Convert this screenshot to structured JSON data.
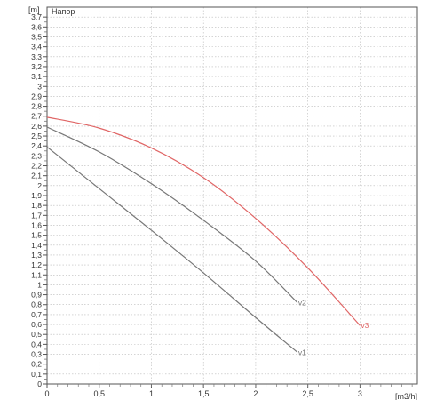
{
  "chart_data": {
    "type": "line",
    "title": "Напор",
    "y_unit": "[m]",
    "x_unit": "[m3/h]",
    "xlim": [
      0,
      3.55
    ],
    "ylim": [
      0,
      3.8
    ],
    "x_ticks": [
      0,
      0.5,
      1,
      1.5,
      2,
      2.5,
      3
    ],
    "x_tick_labels": [
      "0",
      "0,5",
      "1",
      "1,5",
      "2",
      "2,5",
      "3"
    ],
    "y_tick_step": 0.1,
    "y_tick_labels": [
      "0",
      "0,1",
      "0,2",
      "0,3",
      "0,4",
      "0,5",
      "0,6",
      "0,7",
      "0,8",
      "0,9",
      "1",
      "1,1",
      "1,2",
      "1,3",
      "1,4",
      "1,5",
      "1,6",
      "1,7",
      "1,8",
      "1,9",
      "2",
      "2,1",
      "2,2",
      "2,3",
      "2,4",
      "2,5",
      "2,6",
      "2,7",
      "2,8",
      "2,9",
      "3",
      "3,1",
      "3,2",
      "3,3",
      "3,4",
      "3,5",
      "3,6",
      "3,7"
    ],
    "grid": true,
    "series": [
      {
        "name": "v1",
        "color": "#777777",
        "x": [
          0,
          0.5,
          1.0,
          1.5,
          2.0,
          2.4
        ],
        "y": [
          2.39,
          1.97,
          1.55,
          1.12,
          0.67,
          0.32
        ]
      },
      {
        "name": "v2",
        "color": "#777777",
        "x": [
          0,
          0.5,
          1.0,
          1.5,
          2.0,
          2.4
        ],
        "y": [
          2.59,
          2.34,
          2.02,
          1.65,
          1.24,
          0.82
        ]
      },
      {
        "name": "v3",
        "color": "#e06666",
        "x": [
          0,
          0.5,
          1.0,
          1.5,
          2.0,
          2.5,
          3.0
        ],
        "y": [
          2.69,
          2.58,
          2.38,
          2.08,
          1.67,
          1.17,
          0.59
        ]
      }
    ]
  }
}
